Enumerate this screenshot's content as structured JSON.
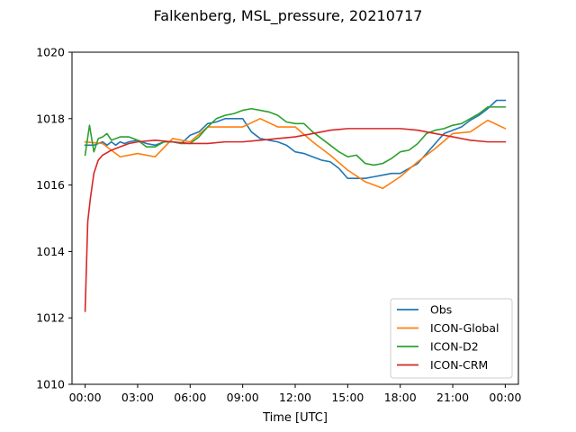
{
  "chart_data": {
    "type": "line",
    "title": "Falkenberg, MSL_pressure, 20210717",
    "xlabel": "Time [UTC]",
    "ylabel": "",
    "x_unit": "hours since 2021-07-17 00:00 UTC",
    "xlim": [
      -0.75,
      24.75
    ],
    "ylim": [
      1010,
      1020
    ],
    "xticks": [
      0,
      3,
      6,
      9,
      12,
      15,
      18,
      21,
      24
    ],
    "xtick_labels": [
      "00:00",
      "03:00",
      "06:00",
      "09:00",
      "12:00",
      "15:00",
      "18:00",
      "21:00",
      "00:00"
    ],
    "yticks": [
      1010,
      1012,
      1014,
      1016,
      1018,
      1020
    ],
    "ytick_labels": [
      "1010",
      "1012",
      "1014",
      "1016",
      "1018",
      "1020"
    ],
    "grid": false,
    "legend_position": "lower right",
    "series": [
      {
        "name": "Obs",
        "color": "#1f77b4",
        "x": [
          0,
          0.5,
          1,
          1.25,
          1.5,
          1.75,
          2,
          2.25,
          2.5,
          3,
          3.5,
          4,
          4.5,
          5,
          5.5,
          6,
          6.5,
          7,
          7.5,
          8,
          8.5,
          9,
          9.5,
          10,
          10.5,
          11,
          11.5,
          12,
          12.5,
          13,
          13.5,
          14,
          14.5,
          15,
          15.5,
          16,
          16.5,
          17,
          17.5,
          18,
          18.5,
          19,
          19.5,
          20,
          20.5,
          21,
          21.5,
          22,
          22.5,
          23,
          23.5,
          24
        ],
        "y": [
          1017.2,
          1017.2,
          1017.3,
          1017.2,
          1017.3,
          1017.2,
          1017.3,
          1017.25,
          1017.3,
          1017.35,
          1017.25,
          1017.2,
          1017.3,
          1017.3,
          1017.25,
          1017.5,
          1017.6,
          1017.85,
          1017.9,
          1018.0,
          1018.0,
          1018.0,
          1017.6,
          1017.4,
          1017.35,
          1017.3,
          1017.2,
          1017.0,
          1016.95,
          1016.85,
          1016.75,
          1016.7,
          1016.5,
          1016.2,
          1016.2,
          1016.2,
          1016.25,
          1016.3,
          1016.35,
          1016.35,
          1016.5,
          1016.65,
          1016.95,
          1017.25,
          1017.55,
          1017.65,
          1017.75,
          1017.95,
          1018.1,
          1018.3,
          1018.55,
          1018.55
        ]
      },
      {
        "name": "ICON-Global",
        "color": "#ff7f0e",
        "x": [
          0,
          1,
          2,
          3,
          4,
          5,
          6,
          7,
          8,
          9,
          10,
          11,
          12,
          13,
          14,
          15,
          16,
          17,
          18,
          19,
          20,
          21,
          22,
          23,
          24
        ],
        "y": [
          1017.3,
          1017.25,
          1016.85,
          1016.95,
          1016.85,
          1017.4,
          1017.3,
          1017.75,
          1017.75,
          1017.75,
          1018.0,
          1017.75,
          1017.75,
          1017.3,
          1016.9,
          1016.45,
          1016.1,
          1015.9,
          1016.25,
          1016.7,
          1017.1,
          1017.55,
          1017.6,
          1017.95,
          1017.7
        ]
      },
      {
        "name": "ICON-D2",
        "color": "#2ca02c",
        "x": [
          0,
          0.25,
          0.5,
          0.75,
          1,
          1.25,
          1.5,
          2,
          2.5,
          3,
          3.5,
          4,
          4.5,
          5,
          5.5,
          6,
          6.5,
          7,
          7.5,
          8,
          8.5,
          9,
          9.5,
          10,
          10.5,
          11,
          11.5,
          12,
          12.5,
          13,
          13.5,
          14,
          14.5,
          15,
          15.5,
          16,
          16.5,
          17,
          17.5,
          18,
          18.5,
          19,
          19.5,
          20,
          20.5,
          21,
          21.5,
          22,
          22.5,
          23,
          23.5,
          24
        ],
        "y": [
          1016.9,
          1017.8,
          1017.0,
          1017.4,
          1017.45,
          1017.55,
          1017.35,
          1017.45,
          1017.45,
          1017.35,
          1017.15,
          1017.15,
          1017.3,
          1017.3,
          1017.25,
          1017.25,
          1017.45,
          1017.75,
          1018.0,
          1018.1,
          1018.15,
          1018.25,
          1018.3,
          1018.25,
          1018.2,
          1018.1,
          1017.9,
          1017.85,
          1017.85,
          1017.6,
          1017.4,
          1017.2,
          1017.0,
          1016.85,
          1016.9,
          1016.65,
          1016.6,
          1016.65,
          1016.8,
          1017.0,
          1017.05,
          1017.25,
          1017.55,
          1017.65,
          1017.7,
          1017.8,
          1017.85,
          1018.0,
          1018.15,
          1018.35,
          1018.35,
          1018.35
        ]
      },
      {
        "name": "ICON-CRM",
        "color": "#d62728",
        "x": [
          0,
          0.15,
          0.3,
          0.5,
          0.75,
          1,
          1.5,
          2,
          2.5,
          3,
          4,
          5,
          6,
          7,
          8,
          9,
          10,
          11,
          12,
          13,
          14,
          15,
          16,
          17,
          18,
          19,
          20,
          21,
          22,
          23,
          24
        ],
        "y": [
          1012.2,
          1014.9,
          1015.6,
          1016.35,
          1016.75,
          1016.9,
          1017.05,
          1017.15,
          1017.25,
          1017.3,
          1017.35,
          1017.3,
          1017.25,
          1017.25,
          1017.3,
          1017.3,
          1017.35,
          1017.4,
          1017.45,
          1017.55,
          1017.65,
          1017.7,
          1017.7,
          1017.7,
          1017.7,
          1017.65,
          1017.55,
          1017.45,
          1017.35,
          1017.3,
          1017.3
        ]
      }
    ]
  }
}
